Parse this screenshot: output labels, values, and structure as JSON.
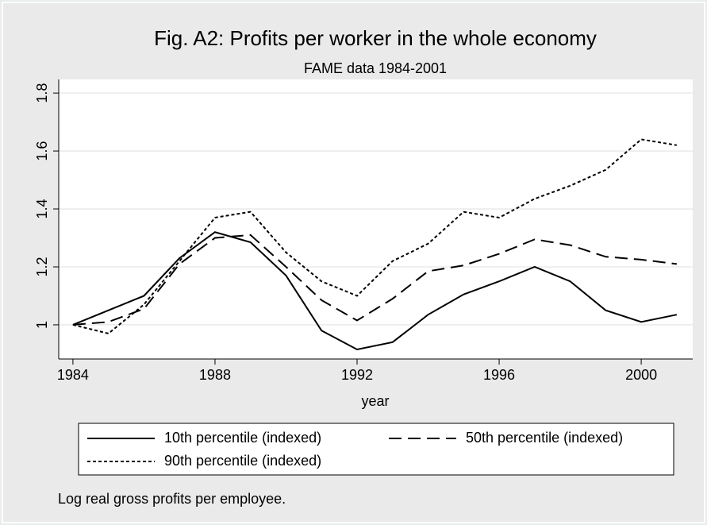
{
  "chart_data": {
    "type": "line",
    "title": "Fig. A2: Profits per worker in the whole economy",
    "subtitle": "FAME data 1984-2001",
    "x_label": "year",
    "note": "Log real gross profits per employee.",
    "x": [
      1984,
      1985,
      1986,
      1987,
      1988,
      1989,
      1990,
      1991,
      1992,
      1993,
      1994,
      1995,
      1996,
      1997,
      1998,
      1999,
      2000,
      2001
    ],
    "series": [
      {
        "name": "10th percentile (indexed)",
        "color": "#000000",
        "line_style": "solid",
        "values": [
          1.0,
          1.05,
          1.1,
          1.23,
          1.32,
          1.285,
          1.17,
          0.98,
          0.915,
          0.94,
          1.035,
          1.105,
          1.15,
          1.2,
          1.15,
          1.05,
          1.01,
          1.035
        ]
      },
      {
        "name": "50th percentile (indexed)",
        "color": "#000000",
        "line_style": "long-dash",
        "values": [
          1.0,
          1.01,
          1.055,
          1.21,
          1.3,
          1.31,
          1.2,
          1.085,
          1.015,
          1.09,
          1.185,
          1.205,
          1.245,
          1.295,
          1.275,
          1.235,
          1.225,
          1.21
        ]
      },
      {
        "name": "90th percentile (indexed)",
        "color": "#000000",
        "line_style": "short-dash",
        "values": [
          1.0,
          0.97,
          1.07,
          1.22,
          1.37,
          1.39,
          1.25,
          1.15,
          1.1,
          1.22,
          1.28,
          1.39,
          1.37,
          1.435,
          1.48,
          1.535,
          1.64,
          1.62
        ]
      }
    ],
    "xlim": [
      1983.6,
      2001.45
    ],
    "xticks": [
      1984,
      1988,
      1992,
      1996,
      2000
    ],
    "ylim": [
      0.882,
      1.847
    ],
    "yticks": [
      1,
      1.2,
      1.4,
      1.6,
      1.8
    ],
    "grid": true
  }
}
